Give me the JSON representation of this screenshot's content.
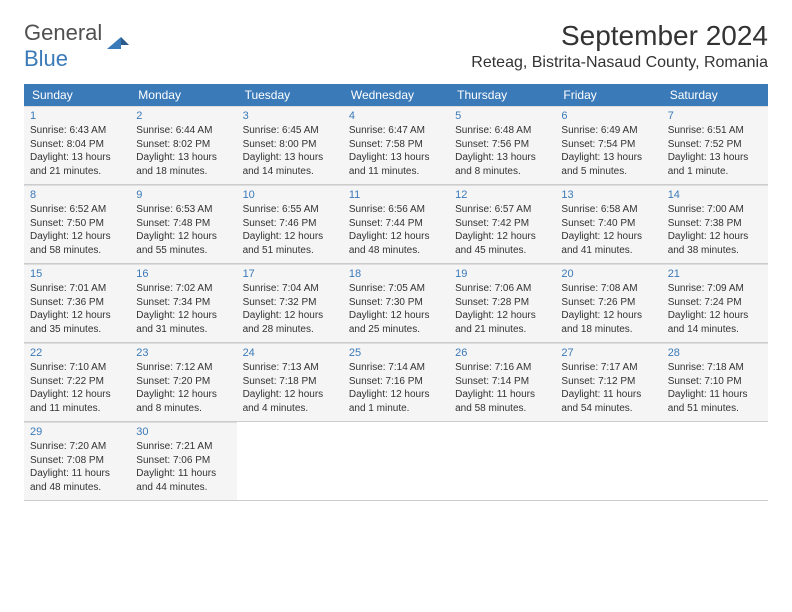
{
  "logo": {
    "text1": "General",
    "text2": "Blue"
  },
  "title": "September 2024",
  "location": "Reteag, Bistrita-Nasaud County, Romania",
  "colors": {
    "header_bg": "#3b7ab8",
    "header_text": "#ffffff",
    "day_number": "#3b7ab8",
    "cell_bg": "#f5f5f5",
    "text": "#333333",
    "logo_gray": "#505050",
    "logo_blue": "#3b7ab8"
  },
  "day_names": [
    "Sunday",
    "Monday",
    "Tuesday",
    "Wednesday",
    "Thursday",
    "Friday",
    "Saturday"
  ],
  "weeks": [
    [
      {
        "num": "1",
        "sunrise": "6:43 AM",
        "sunset": "8:04 PM",
        "daylight": "13 hours and 21 minutes."
      },
      {
        "num": "2",
        "sunrise": "6:44 AM",
        "sunset": "8:02 PM",
        "daylight": "13 hours and 18 minutes."
      },
      {
        "num": "3",
        "sunrise": "6:45 AM",
        "sunset": "8:00 PM",
        "daylight": "13 hours and 14 minutes."
      },
      {
        "num": "4",
        "sunrise": "6:47 AM",
        "sunset": "7:58 PM",
        "daylight": "13 hours and 11 minutes."
      },
      {
        "num": "5",
        "sunrise": "6:48 AM",
        "sunset": "7:56 PM",
        "daylight": "13 hours and 8 minutes."
      },
      {
        "num": "6",
        "sunrise": "6:49 AM",
        "sunset": "7:54 PM",
        "daylight": "13 hours and 5 minutes."
      },
      {
        "num": "7",
        "sunrise": "6:51 AM",
        "sunset": "7:52 PM",
        "daylight": "13 hours and 1 minute."
      }
    ],
    [
      {
        "num": "8",
        "sunrise": "6:52 AM",
        "sunset": "7:50 PM",
        "daylight": "12 hours and 58 minutes."
      },
      {
        "num": "9",
        "sunrise": "6:53 AM",
        "sunset": "7:48 PM",
        "daylight": "12 hours and 55 minutes."
      },
      {
        "num": "10",
        "sunrise": "6:55 AM",
        "sunset": "7:46 PM",
        "daylight": "12 hours and 51 minutes."
      },
      {
        "num": "11",
        "sunrise": "6:56 AM",
        "sunset": "7:44 PM",
        "daylight": "12 hours and 48 minutes."
      },
      {
        "num": "12",
        "sunrise": "6:57 AM",
        "sunset": "7:42 PM",
        "daylight": "12 hours and 45 minutes."
      },
      {
        "num": "13",
        "sunrise": "6:58 AM",
        "sunset": "7:40 PM",
        "daylight": "12 hours and 41 minutes."
      },
      {
        "num": "14",
        "sunrise": "7:00 AM",
        "sunset": "7:38 PM",
        "daylight": "12 hours and 38 minutes."
      }
    ],
    [
      {
        "num": "15",
        "sunrise": "7:01 AM",
        "sunset": "7:36 PM",
        "daylight": "12 hours and 35 minutes."
      },
      {
        "num": "16",
        "sunrise": "7:02 AM",
        "sunset": "7:34 PM",
        "daylight": "12 hours and 31 minutes."
      },
      {
        "num": "17",
        "sunrise": "7:04 AM",
        "sunset": "7:32 PM",
        "daylight": "12 hours and 28 minutes."
      },
      {
        "num": "18",
        "sunrise": "7:05 AM",
        "sunset": "7:30 PM",
        "daylight": "12 hours and 25 minutes."
      },
      {
        "num": "19",
        "sunrise": "7:06 AM",
        "sunset": "7:28 PM",
        "daylight": "12 hours and 21 minutes."
      },
      {
        "num": "20",
        "sunrise": "7:08 AM",
        "sunset": "7:26 PM",
        "daylight": "12 hours and 18 minutes."
      },
      {
        "num": "21",
        "sunrise": "7:09 AM",
        "sunset": "7:24 PM",
        "daylight": "12 hours and 14 minutes."
      }
    ],
    [
      {
        "num": "22",
        "sunrise": "7:10 AM",
        "sunset": "7:22 PM",
        "daylight": "12 hours and 11 minutes."
      },
      {
        "num": "23",
        "sunrise": "7:12 AM",
        "sunset": "7:20 PM",
        "daylight": "12 hours and 8 minutes."
      },
      {
        "num": "24",
        "sunrise": "7:13 AM",
        "sunset": "7:18 PM",
        "daylight": "12 hours and 4 minutes."
      },
      {
        "num": "25",
        "sunrise": "7:14 AM",
        "sunset": "7:16 PM",
        "daylight": "12 hours and 1 minute."
      },
      {
        "num": "26",
        "sunrise": "7:16 AM",
        "sunset": "7:14 PM",
        "daylight": "11 hours and 58 minutes."
      },
      {
        "num": "27",
        "sunrise": "7:17 AM",
        "sunset": "7:12 PM",
        "daylight": "11 hours and 54 minutes."
      },
      {
        "num": "28",
        "sunrise": "7:18 AM",
        "sunset": "7:10 PM",
        "daylight": "11 hours and 51 minutes."
      }
    ],
    [
      {
        "num": "29",
        "sunrise": "7:20 AM",
        "sunset": "7:08 PM",
        "daylight": "11 hours and 48 minutes."
      },
      {
        "num": "30",
        "sunrise": "7:21 AM",
        "sunset": "7:06 PM",
        "daylight": "11 hours and 44 minutes."
      },
      null,
      null,
      null,
      null,
      null
    ]
  ],
  "labels": {
    "sunrise": "Sunrise:",
    "sunset": "Sunset:",
    "daylight": "Daylight:"
  }
}
